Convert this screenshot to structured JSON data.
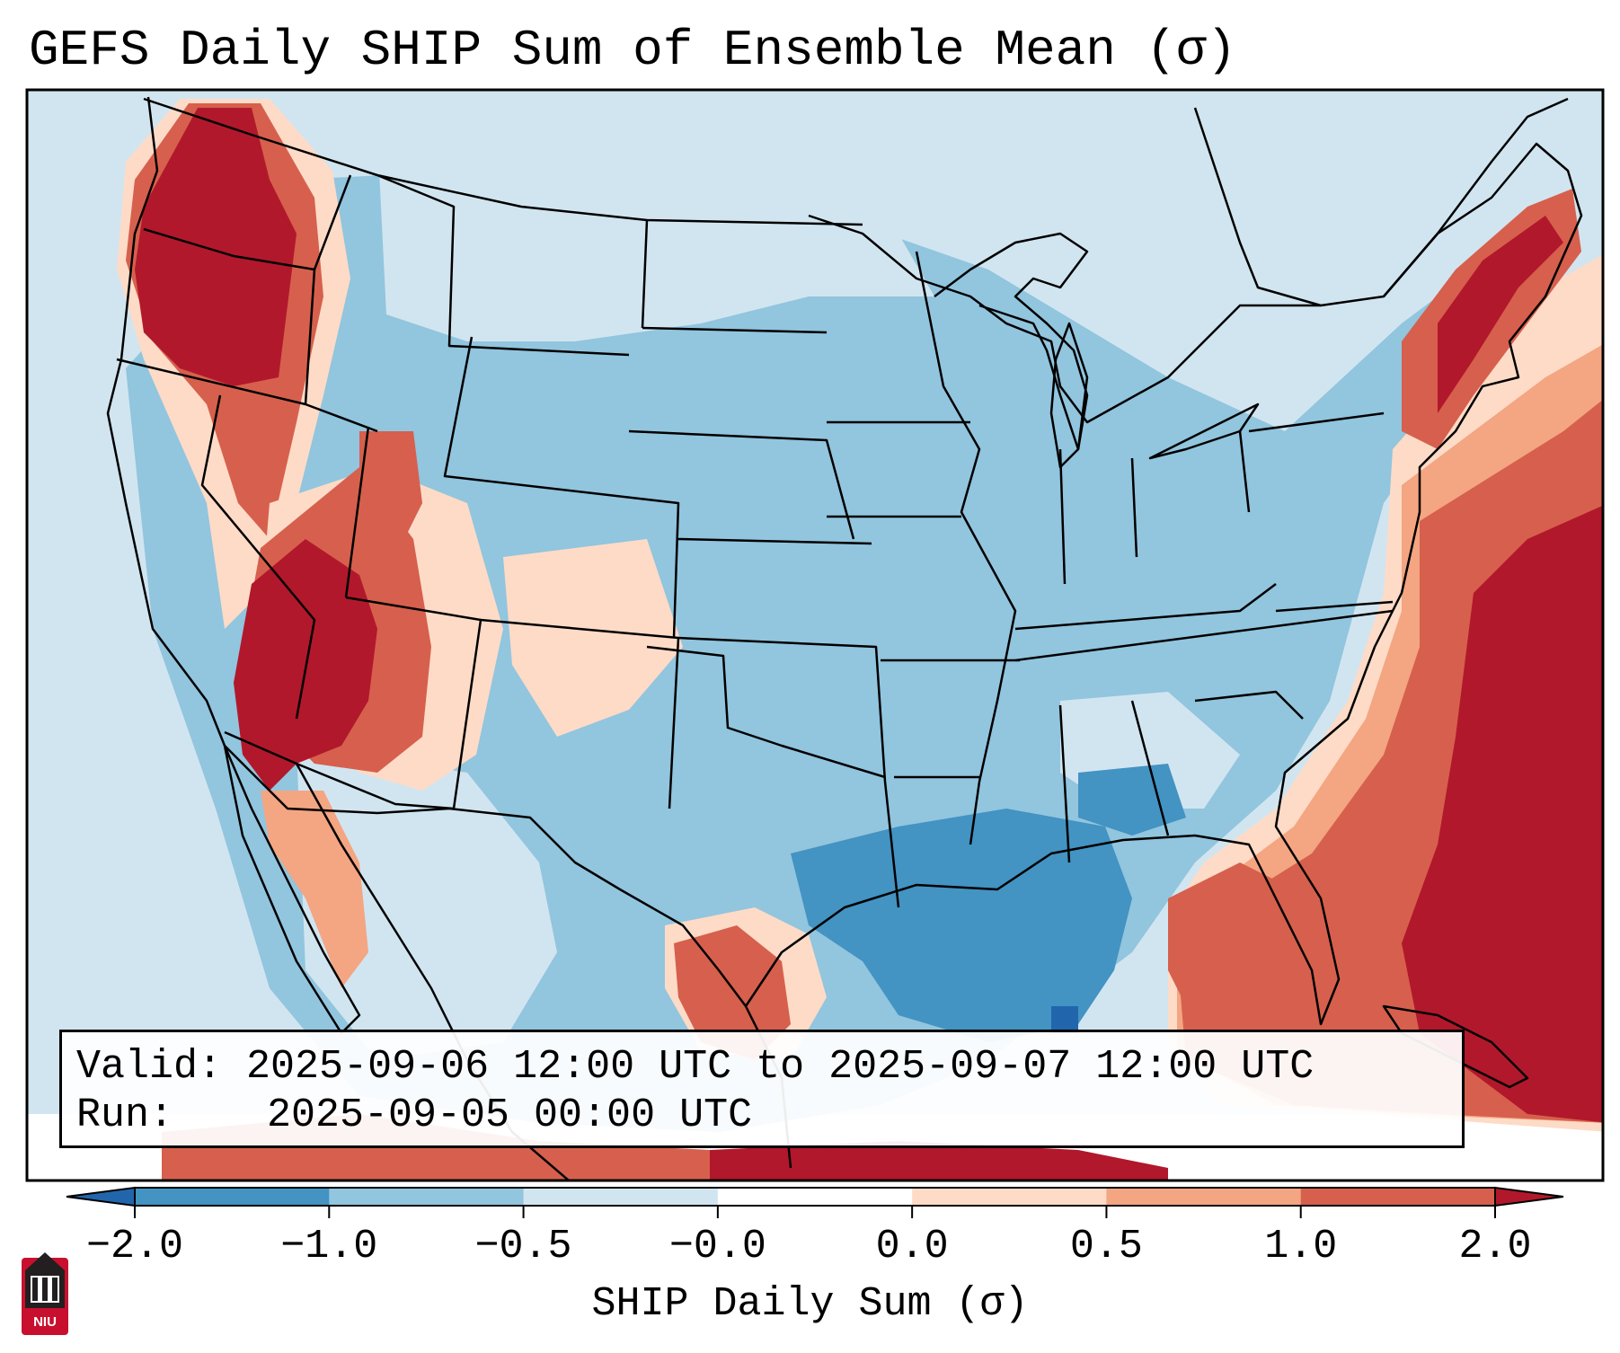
{
  "title": "GEFS Daily SHIP Sum of Ensemble Mean (σ)",
  "info": {
    "valid_label": "Valid:",
    "valid_value": "2025-09-06 12:00 UTC to 2025-09-07 12:00 UTC",
    "run_label": "Run:",
    "run_value": "2025-09-05 00:00 UTC"
  },
  "colorbar": {
    "label": "SHIP Daily Sum (σ)",
    "ticks": [
      "−2.0",
      "−1.0",
      "−0.5",
      "−0.0",
      "0.0",
      "0.5",
      "1.0",
      "2.0"
    ],
    "bins": [
      {
        "from": -2.0,
        "to": -1.0,
        "color": "#4393c3"
      },
      {
        "from": -1.0,
        "to": -0.5,
        "color": "#92c5de"
      },
      {
        "from": -0.5,
        "to": -0.0,
        "color": "#d1e5f0"
      },
      {
        "from": -0.0,
        "to": 0.0,
        "color": "#ffffff"
      },
      {
        "from": 0.0,
        "to": 0.5,
        "color": "#fddbc7"
      },
      {
        "from": 0.5,
        "to": 1.0,
        "color": "#f4a582"
      },
      {
        "from": 1.0,
        "to": 2.0,
        "color": "#d6604d"
      }
    ],
    "under_color": "#2166ac",
    "over_color": "#b2182b"
  },
  "colors": {
    "ocean_background": "#d1e5f0",
    "land_base": "#92c5de"
  },
  "logo": {
    "text": "NIU",
    "color": "#c8102e"
  }
}
